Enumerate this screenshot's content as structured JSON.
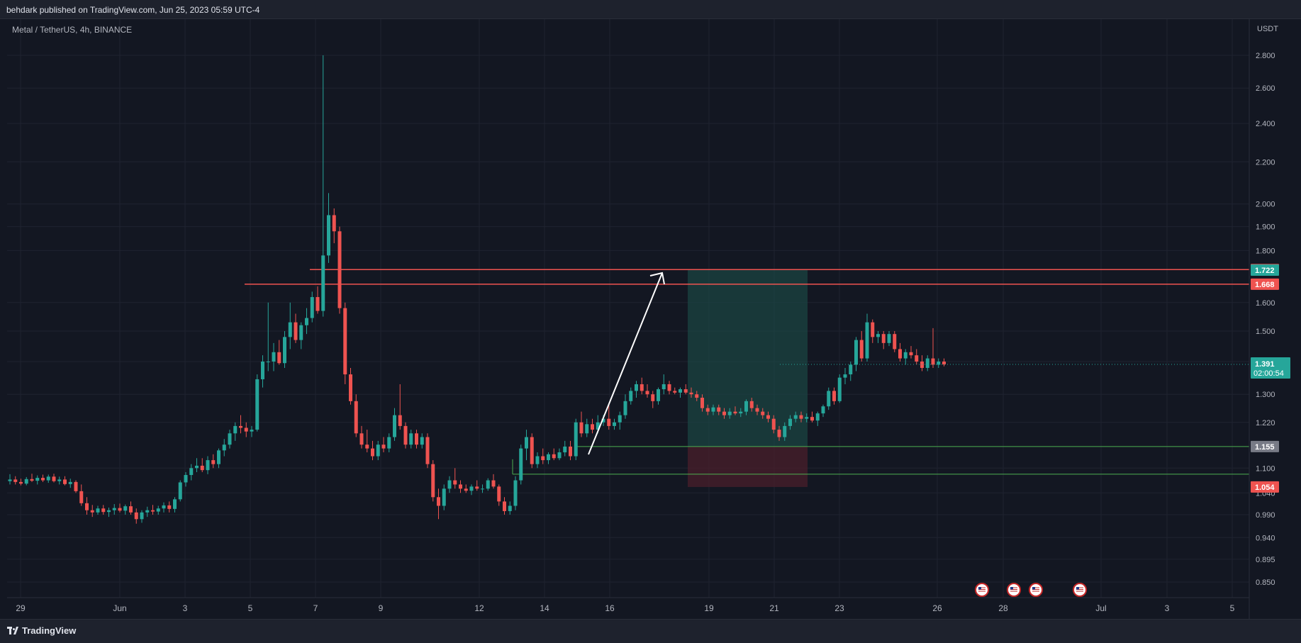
{
  "header": {
    "published": "behdark published on TradingView.com, Jun 25, 2023 05:59 UTC-4"
  },
  "chart_info": {
    "symbol": "Metal / TetherUS, 4h, BINANCE",
    "currency": "USDT"
  },
  "price_axis": {
    "ticks": [
      "2.800",
      "2.600",
      "2.400",
      "2.200",
      "2.000",
      "1.900",
      "1.800",
      "1.600",
      "1.500",
      "1.400",
      "1.300",
      "1.220",
      "1.100",
      "1.040",
      "0.990",
      "0.940",
      "0.895",
      "0.850"
    ]
  },
  "time_axis": {
    "ticks": [
      "29",
      "Jun",
      "3",
      "5",
      "7",
      "9",
      "12",
      "14",
      "16",
      "19",
      "21",
      "23",
      "26",
      "28",
      "Jul",
      "3",
      "5"
    ]
  },
  "price_tags": {
    "stop_upper": "1.724",
    "target": "1.722",
    "resistance": "1.668",
    "current_price": "1.391",
    "countdown": "02:00:54",
    "entry": "1.155",
    "stop": "1.054"
  },
  "colors": {
    "background": "#131722",
    "up": "#26a69a",
    "down": "#ef5350",
    "target_zone": "#1b4a46",
    "stop_zone": "#4a1f2b",
    "entry_tag": "#787b86",
    "support_line": "#4caf50"
  },
  "events": {
    "icon": "us-flag-icon",
    "count": 4
  },
  "footer": {
    "brand": "TradingView"
  },
  "chart_data": {
    "type": "candlestick",
    "title": "Metal / TetherUS, 4h, BINANCE",
    "ylabel": "USDT",
    "y_scale": "log",
    "ylim": [
      0.83,
      2.85
    ],
    "x_ticks": [
      "29",
      "Jun",
      "3",
      "5",
      "7",
      "9",
      "12",
      "14",
      "16",
      "19",
      "21",
      "23",
      "26",
      "28",
      "Jul",
      "3",
      "5"
    ],
    "candles": [
      [
        1.068,
        1.085,
        1.06,
        1.072
      ],
      [
        1.072,
        1.08,
        1.06,
        1.066
      ],
      [
        1.066,
        1.074,
        1.058,
        1.062
      ],
      [
        1.062,
        1.078,
        1.058,
        1.073
      ],
      [
        1.073,
        1.086,
        1.066,
        1.069
      ],
      [
        1.069,
        1.082,
        1.06,
        1.076
      ],
      [
        1.076,
        1.084,
        1.066,
        1.07
      ],
      [
        1.07,
        1.084,
        1.064,
        1.079
      ],
      [
        1.079,
        1.086,
        1.065,
        1.068
      ],
      [
        1.068,
        1.079,
        1.06,
        1.072
      ],
      [
        1.072,
        1.08,
        1.058,
        1.061
      ],
      [
        1.061,
        1.074,
        1.052,
        1.066
      ],
      [
        1.066,
        1.07,
        1.04,
        1.044
      ],
      [
        1.044,
        1.06,
        1.01,
        1.016
      ],
      [
        1.016,
        1.03,
        0.99,
        1.0
      ],
      [
        1.0,
        1.012,
        0.985,
        0.995
      ],
      [
        0.995,
        1.01,
        0.99,
        1.004
      ],
      [
        1.004,
        1.012,
        0.99,
        0.996
      ],
      [
        0.996,
        1.006,
        0.985,
        1.0
      ],
      [
        1.0,
        1.014,
        0.99,
        1.005
      ],
      [
        1.005,
        1.015,
        0.995,
        0.999
      ],
      [
        0.999,
        1.013,
        0.99,
        1.009
      ],
      [
        1.009,
        1.02,
        0.99,
        0.995
      ],
      [
        0.995,
        1.004,
        0.97,
        0.98
      ],
      [
        0.98,
        1.0,
        0.972,
        0.995
      ],
      [
        0.995,
        1.008,
        0.985,
        1.0
      ],
      [
        1.0,
        1.012,
        0.99,
        0.997
      ],
      [
        0.997,
        1.01,
        0.99,
        1.004
      ],
      [
        1.004,
        1.018,
        0.995,
        1.011
      ],
      [
        1.011,
        1.02,
        0.995,
        1.003
      ],
      [
        1.003,
        1.03,
        0.995,
        1.025
      ],
      [
        1.025,
        1.07,
        1.02,
        1.065
      ],
      [
        1.065,
        1.09,
        1.055,
        1.083
      ],
      [
        1.083,
        1.11,
        1.07,
        1.1
      ],
      [
        1.1,
        1.125,
        1.09,
        1.106
      ],
      [
        1.106,
        1.125,
        1.09,
        1.095
      ],
      [
        1.095,
        1.13,
        1.085,
        1.12
      ],
      [
        1.12,
        1.135,
        1.1,
        1.11
      ],
      [
        1.11,
        1.15,
        1.1,
        1.145
      ],
      [
        1.145,
        1.175,
        1.13,
        1.16
      ],
      [
        1.16,
        1.2,
        1.15,
        1.19
      ],
      [
        1.19,
        1.22,
        1.17,
        1.21
      ],
      [
        1.21,
        1.24,
        1.19,
        1.205
      ],
      [
        1.205,
        1.22,
        1.18,
        1.195
      ],
      [
        1.195,
        1.21,
        1.18,
        1.2
      ],
      [
        1.2,
        1.36,
        1.195,
        1.345
      ],
      [
        1.345,
        1.42,
        1.32,
        1.4
      ],
      [
        1.4,
        1.6,
        1.37,
        1.4
      ],
      [
        1.4,
        1.46,
        1.37,
        1.43
      ],
      [
        1.43,
        1.47,
        1.39,
        1.395
      ],
      [
        1.395,
        1.5,
        1.38,
        1.48
      ],
      [
        1.48,
        1.6,
        1.44,
        1.53
      ],
      [
        1.53,
        1.56,
        1.46,
        1.47
      ],
      [
        1.47,
        1.53,
        1.44,
        1.52
      ],
      [
        1.52,
        1.58,
        1.49,
        1.545
      ],
      [
        1.545,
        1.64,
        1.53,
        1.62
      ],
      [
        1.62,
        1.66,
        1.56,
        1.57
      ],
      [
        1.57,
        2.8,
        1.55,
        1.78
      ],
      [
        1.78,
        2.05,
        1.75,
        1.95
      ],
      [
        1.95,
        1.98,
        1.83,
        1.88
      ],
      [
        1.88,
        1.9,
        1.56,
        1.58
      ],
      [
        1.58,
        1.6,
        1.33,
        1.36
      ],
      [
        1.36,
        1.38,
        1.27,
        1.28
      ],
      [
        1.28,
        1.3,
        1.18,
        1.19
      ],
      [
        1.19,
        1.21,
        1.15,
        1.16
      ],
      [
        1.16,
        1.2,
        1.14,
        1.15
      ],
      [
        1.15,
        1.17,
        1.12,
        1.13
      ],
      [
        1.13,
        1.17,
        1.12,
        1.16
      ],
      [
        1.16,
        1.18,
        1.14,
        1.15
      ],
      [
        1.15,
        1.19,
        1.14,
        1.18
      ],
      [
        1.18,
        1.26,
        1.17,
        1.24
      ],
      [
        1.24,
        1.33,
        1.2,
        1.21
      ],
      [
        1.21,
        1.22,
        1.15,
        1.16
      ],
      [
        1.16,
        1.2,
        1.15,
        1.19
      ],
      [
        1.19,
        1.2,
        1.15,
        1.16
      ],
      [
        1.16,
        1.19,
        1.15,
        1.18
      ],
      [
        1.18,
        1.19,
        1.1,
        1.11
      ],
      [
        1.11,
        1.12,
        1.02,
        1.03
      ],
      [
        1.03,
        1.05,
        0.98,
        1.01
      ],
      [
        1.01,
        1.06,
        1.0,
        1.05
      ],
      [
        1.05,
        1.08,
        1.04,
        1.07
      ],
      [
        1.07,
        1.1,
        1.05,
        1.06
      ],
      [
        1.06,
        1.07,
        1.04,
        1.05
      ],
      [
        1.05,
        1.06,
        1.04,
        1.045
      ],
      [
        1.045,
        1.06,
        1.035,
        1.055
      ],
      [
        1.055,
        1.07,
        1.045,
        1.05
      ],
      [
        1.05,
        1.06,
        1.04,
        1.05
      ],
      [
        1.05,
        1.075,
        1.045,
        1.07
      ],
      [
        1.07,
        1.085,
        1.05,
        1.055
      ],
      [
        1.055,
        1.06,
        1.01,
        1.02
      ],
      [
        1.02,
        1.03,
        0.99,
        0.998
      ],
      [
        0.998,
        1.02,
        0.99,
        1.01
      ],
      [
        1.01,
        1.08,
        1.0,
        1.07
      ],
      [
        1.07,
        1.16,
        1.06,
        1.15
      ],
      [
        1.15,
        1.2,
        1.12,
        1.18
      ],
      [
        1.18,
        1.19,
        1.1,
        1.11
      ],
      [
        1.11,
        1.14,
        1.1,
        1.13
      ],
      [
        1.13,
        1.15,
        1.11,
        1.12
      ],
      [
        1.12,
        1.14,
        1.11,
        1.135
      ],
      [
        1.135,
        1.15,
        1.12,
        1.125
      ],
      [
        1.125,
        1.15,
        1.12,
        1.14
      ],
      [
        1.14,
        1.17,
        1.13,
        1.155
      ],
      [
        1.155,
        1.17,
        1.12,
        1.13
      ],
      [
        1.13,
        1.23,
        1.12,
        1.22
      ],
      [
        1.22,
        1.25,
        1.18,
        1.19
      ],
      [
        1.19,
        1.23,
        1.18,
        1.215
      ],
      [
        1.215,
        1.23,
        1.19,
        1.2
      ],
      [
        1.2,
        1.24,
        1.19,
        1.22
      ],
      [
        1.22,
        1.24,
        1.21,
        1.23
      ],
      [
        1.23,
        1.27,
        1.2,
        1.21
      ],
      [
        1.21,
        1.23,
        1.2,
        1.22
      ],
      [
        1.22,
        1.25,
        1.2,
        1.24
      ],
      [
        1.24,
        1.3,
        1.23,
        1.28
      ],
      [
        1.28,
        1.32,
        1.27,
        1.31
      ],
      [
        1.31,
        1.34,
        1.29,
        1.33
      ],
      [
        1.33,
        1.35,
        1.3,
        1.31
      ],
      [
        1.31,
        1.33,
        1.29,
        1.3
      ],
      [
        1.3,
        1.31,
        1.26,
        1.28
      ],
      [
        1.28,
        1.32,
        1.27,
        1.315
      ],
      [
        1.315,
        1.36,
        1.3,
        1.33
      ],
      [
        1.33,
        1.34,
        1.3,
        1.31
      ],
      [
        1.31,
        1.32,
        1.3,
        1.305
      ],
      [
        1.305,
        1.32,
        1.29,
        1.315
      ],
      [
        1.315,
        1.33,
        1.3,
        1.305
      ],
      [
        1.305,
        1.32,
        1.29,
        1.3
      ],
      [
        1.3,
        1.31,
        1.28,
        1.29
      ],
      [
        1.29,
        1.3,
        1.25,
        1.26
      ],
      [
        1.26,
        1.27,
        1.24,
        1.25
      ],
      [
        1.25,
        1.27,
        1.24,
        1.262
      ],
      [
        1.262,
        1.27,
        1.24,
        1.25
      ],
      [
        1.25,
        1.26,
        1.23,
        1.24
      ],
      [
        1.24,
        1.26,
        1.23,
        1.25
      ],
      [
        1.25,
        1.265,
        1.24,
        1.245
      ],
      [
        1.245,
        1.26,
        1.235,
        1.25
      ],
      [
        1.25,
        1.285,
        1.24,
        1.28
      ],
      [
        1.28,
        1.29,
        1.25,
        1.26
      ],
      [
        1.26,
        1.27,
        1.24,
        1.25
      ],
      [
        1.25,
        1.26,
        1.23,
        1.24
      ],
      [
        1.24,
        1.25,
        1.22,
        1.23
      ],
      [
        1.23,
        1.24,
        1.19,
        1.2
      ],
      [
        1.2,
        1.21,
        1.17,
        1.18
      ],
      [
        1.18,
        1.22,
        1.17,
        1.21
      ],
      [
        1.21,
        1.24,
        1.2,
        1.23
      ],
      [
        1.23,
        1.25,
        1.22,
        1.24
      ],
      [
        1.24,
        1.25,
        1.22,
        1.23
      ],
      [
        1.23,
        1.245,
        1.22,
        1.235
      ],
      [
        1.235,
        1.25,
        1.22,
        1.225
      ],
      [
        1.225,
        1.25,
        1.21,
        1.245
      ],
      [
        1.245,
        1.27,
        1.235,
        1.265
      ],
      [
        1.265,
        1.32,
        1.255,
        1.31
      ],
      [
        1.31,
        1.32,
        1.27,
        1.28
      ],
      [
        1.28,
        1.36,
        1.275,
        1.35
      ],
      [
        1.35,
        1.38,
        1.33,
        1.36
      ],
      [
        1.36,
        1.4,
        1.34,
        1.39
      ],
      [
        1.39,
        1.48,
        1.37,
        1.47
      ],
      [
        1.47,
        1.5,
        1.4,
        1.41
      ],
      [
        1.41,
        1.56,
        1.4,
        1.53
      ],
      [
        1.53,
        1.54,
        1.46,
        1.48
      ],
      [
        1.48,
        1.5,
        1.46,
        1.49
      ],
      [
        1.49,
        1.5,
        1.44,
        1.46
      ],
      [
        1.46,
        1.5,
        1.45,
        1.49
      ],
      [
        1.49,
        1.5,
        1.43,
        1.44
      ],
      [
        1.44,
        1.46,
        1.4,
        1.41
      ],
      [
        1.41,
        1.44,
        1.39,
        1.43
      ],
      [
        1.43,
        1.45,
        1.41,
        1.42
      ],
      [
        1.42,
        1.44,
        1.39,
        1.4
      ],
      [
        1.4,
        1.42,
        1.37,
        1.38
      ],
      [
        1.38,
        1.42,
        1.37,
        1.41
      ],
      [
        1.41,
        1.51,
        1.38,
        1.39
      ],
      [
        1.39,
        1.41,
        1.38,
        1.4
      ],
      [
        1.4,
        1.41,
        1.385,
        1.391
      ]
    ],
    "levels": {
      "resistance_upper": 1.724,
      "target": 1.722,
      "resistance": 1.668,
      "entry": 1.155,
      "support": 1.085,
      "stop": 1.054
    },
    "last_price": 1.391
  }
}
